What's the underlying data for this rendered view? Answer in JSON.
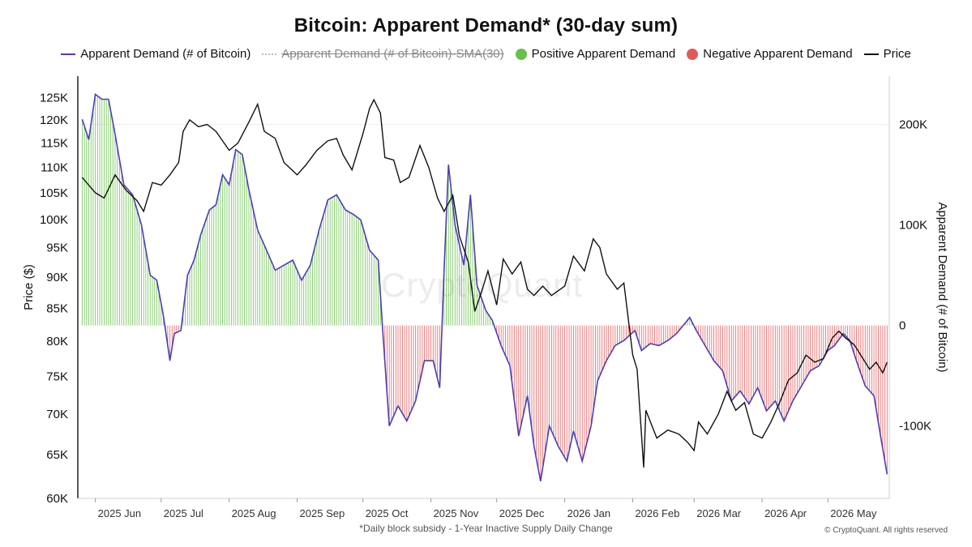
{
  "chart_data": {
    "type": "bar",
    "title": "Bitcoin: Apparent Demand* (30-day sum)",
    "footnote": "*Daily block subsidy - 1-Year Inactive Supply Daily Change",
    "copyright": "© CryptoQuant. All rights reserved",
    "watermark": "CryptoQuant",
    "legend": [
      {
        "name": "Apparent Demand (# of Bitcoin)",
        "swatch": "line",
        "color": "#4b3fb3",
        "hidden": false
      },
      {
        "name": "Apparent Demand (# of Bitcoin)-SMA(30)",
        "swatch": "dash",
        "color": "#bbbbbb",
        "hidden": true
      },
      {
        "name": "Positive Apparent Demand",
        "swatch": "dot",
        "color": "#6abf4b",
        "hidden": false
      },
      {
        "name": "Negative Apparent Demand",
        "swatch": "dot",
        "color": "#e05a5a",
        "hidden": false
      },
      {
        "name": "Price",
        "swatch": "line",
        "color": "#111111",
        "hidden": false
      }
    ],
    "left_axis": {
      "label": "Price ($)",
      "scale": "log",
      "range": [
        60000,
        130000
      ],
      "ticks": [
        60000,
        65000,
        70000,
        75000,
        80000,
        85000,
        90000,
        95000,
        100000,
        105000,
        110000,
        115000,
        120000,
        125000
      ],
      "tick_labels": [
        "60K",
        "65K",
        "70K",
        "75K",
        "80K",
        "85K",
        "90K",
        "95K",
        "100K",
        "105K",
        "110K",
        "115K",
        "120K",
        "125K"
      ]
    },
    "right_axis": {
      "label": "Apparent Demand (# of Bitcoin)",
      "scale": "linear",
      "range": [
        -172000,
        248000
      ],
      "ticks": [
        -100000,
        0,
        100000,
        200000
      ],
      "tick_labels": [
        "-100K",
        "0",
        "100K",
        "200K"
      ]
    },
    "x_axis": {
      "range": [
        "2025-05-24",
        "2026-05-29"
      ],
      "ticks": [
        "2025-06-01",
        "2025-07-01",
        "2025-08-01",
        "2025-09-01",
        "2025-10-01",
        "2025-11-01",
        "2025-12-01",
        "2026-01-01",
        "2026-02-01",
        "2026-03-01",
        "2026-04-01",
        "2026-05-01"
      ],
      "tick_labels": [
        "2025 Jun",
        "2025 Jul",
        "2025 Aug",
        "2025 Sep",
        "2025 Oct",
        "2025 Nov",
        "2025 Dec",
        "2026 Jan",
        "2026 Feb",
        "2026 Mar",
        "2026 Apr",
        "2026 May"
      ]
    },
    "series": [
      {
        "name": "Price",
        "axis": "left",
        "color": "#111111",
        "points": [
          [
            "2025-05-26",
            108000
          ],
          [
            "2025-06-01",
            105000
          ],
          [
            "2025-06-05",
            104000
          ],
          [
            "2025-06-10",
            108500
          ],
          [
            "2025-06-15",
            105500
          ],
          [
            "2025-06-20",
            103500
          ],
          [
            "2025-06-23",
            101500
          ],
          [
            "2025-06-27",
            107000
          ],
          [
            "2025-07-01",
            106500
          ],
          [
            "2025-07-05",
            108500
          ],
          [
            "2025-07-09",
            111000
          ],
          [
            "2025-07-11",
            117500
          ],
          [
            "2025-07-14",
            120000
          ],
          [
            "2025-07-18",
            118500
          ],
          [
            "2025-07-22",
            119000
          ],
          [
            "2025-07-26",
            117500
          ],
          [
            "2025-08-01",
            113500
          ],
          [
            "2025-08-05",
            115000
          ],
          [
            "2025-08-10",
            119500
          ],
          [
            "2025-08-14",
            123500
          ],
          [
            "2025-08-17",
            117500
          ],
          [
            "2025-08-22",
            116000
          ],
          [
            "2025-08-26",
            111000
          ],
          [
            "2025-09-01",
            108500
          ],
          [
            "2025-09-05",
            110500
          ],
          [
            "2025-09-10",
            113500
          ],
          [
            "2025-09-15",
            115500
          ],
          [
            "2025-09-19",
            116000
          ],
          [
            "2025-09-22",
            112500
          ],
          [
            "2025-09-26",
            109500
          ],
          [
            "2025-10-01",
            117000
          ],
          [
            "2025-10-04",
            122500
          ],
          [
            "2025-10-06",
            124500
          ],
          [
            "2025-10-09",
            121500
          ],
          [
            "2025-10-11",
            112000
          ],
          [
            "2025-10-15",
            111500
          ],
          [
            "2025-10-18",
            107000
          ],
          [
            "2025-10-22",
            108000
          ],
          [
            "2025-10-27",
            114500
          ],
          [
            "2025-10-31",
            110000
          ],
          [
            "2025-11-04",
            104000
          ],
          [
            "2025-11-07",
            101500
          ],
          [
            "2025-11-11",
            104500
          ],
          [
            "2025-11-14",
            97000
          ],
          [
            "2025-11-18",
            92500
          ],
          [
            "2025-11-21",
            84500
          ],
          [
            "2025-11-24",
            87500
          ],
          [
            "2025-11-27",
            91000
          ],
          [
            "2025-12-01",
            85500
          ],
          [
            "2025-12-04",
            93000
          ],
          [
            "2025-12-08",
            90500
          ],
          [
            "2025-12-12",
            92500
          ],
          [
            "2025-12-15",
            88000
          ],
          [
            "2025-12-18",
            87000
          ],
          [
            "2025-12-22",
            88500
          ],
          [
            "2025-12-26",
            87000
          ],
          [
            "2026-01-01",
            88500
          ],
          [
            "2026-01-05",
            93500
          ],
          [
            "2026-01-10",
            91000
          ],
          [
            "2026-01-14",
            96500
          ],
          [
            "2026-01-17",
            95000
          ],
          [
            "2026-01-20",
            90500
          ],
          [
            "2026-01-25",
            88000
          ],
          [
            "2026-01-28",
            89000
          ],
          [
            "2026-02-01",
            78000
          ],
          [
            "2026-02-03",
            76000
          ],
          [
            "2026-02-06",
            63500
          ],
          [
            "2026-02-07",
            70500
          ],
          [
            "2026-02-12",
            67000
          ],
          [
            "2026-02-17",
            68000
          ],
          [
            "2026-02-22",
            67500
          ],
          [
            "2026-02-26",
            66500
          ],
          [
            "2026-03-01",
            65500
          ],
          [
            "2026-03-03",
            69000
          ],
          [
            "2026-03-07",
            67500
          ],
          [
            "2026-03-12",
            70000
          ],
          [
            "2026-03-16",
            73000
          ],
          [
            "2026-03-20",
            70500
          ],
          [
            "2026-03-24",
            71500
          ],
          [
            "2026-03-28",
            67500
          ],
          [
            "2026-04-01",
            67000
          ],
          [
            "2026-04-05",
            69000
          ],
          [
            "2026-04-09",
            71500
          ],
          [
            "2026-04-13",
            74500
          ],
          [
            "2026-04-17",
            75500
          ],
          [
            "2026-04-21",
            78000
          ],
          [
            "2026-04-25",
            77000
          ],
          [
            "2026-04-29",
            77500
          ],
          [
            "2026-05-03",
            80500
          ],
          [
            "2026-05-06",
            81500
          ],
          [
            "2026-05-09",
            80500
          ],
          [
            "2026-05-13",
            79500
          ],
          [
            "2026-05-17",
            77500
          ],
          [
            "2026-05-20",
            76000
          ],
          [
            "2026-05-23",
            77000
          ],
          [
            "2026-05-26",
            75500
          ],
          [
            "2026-05-28",
            77000
          ]
        ]
      },
      {
        "name": "Apparent Demand (# of Bitcoin)",
        "axis": "right",
        "color": "#4b3fb3",
        "points": [
          [
            "2025-05-26",
            205000
          ],
          [
            "2025-05-29",
            185000
          ],
          [
            "2025-06-01",
            230000
          ],
          [
            "2025-06-04",
            225000
          ],
          [
            "2025-06-07",
            225000
          ],
          [
            "2025-06-10",
            190000
          ],
          [
            "2025-06-14",
            140000
          ],
          [
            "2025-06-18",
            130000
          ],
          [
            "2025-06-22",
            100000
          ],
          [
            "2025-06-26",
            50000
          ],
          [
            "2025-06-29",
            45000
          ],
          [
            "2025-07-02",
            10000
          ],
          [
            "2025-07-05",
            -35000
          ],
          [
            "2025-07-07",
            -8000
          ],
          [
            "2025-07-10",
            -5000
          ],
          [
            "2025-07-13",
            50000
          ],
          [
            "2025-07-16",
            65000
          ],
          [
            "2025-07-19",
            90000
          ],
          [
            "2025-07-23",
            115000
          ],
          [
            "2025-07-26",
            120000
          ],
          [
            "2025-07-29",
            150000
          ],
          [
            "2025-08-01",
            140000
          ],
          [
            "2025-08-04",
            175000
          ],
          [
            "2025-08-07",
            170000
          ],
          [
            "2025-08-10",
            135000
          ],
          [
            "2025-08-14",
            95000
          ],
          [
            "2025-08-18",
            75000
          ],
          [
            "2025-08-22",
            55000
          ],
          [
            "2025-08-26",
            60000
          ],
          [
            "2025-08-30",
            65000
          ],
          [
            "2025-09-03",
            45000
          ],
          [
            "2025-09-07",
            60000
          ],
          [
            "2025-09-11",
            95000
          ],
          [
            "2025-09-15",
            125000
          ],
          [
            "2025-09-19",
            130000
          ],
          [
            "2025-09-23",
            115000
          ],
          [
            "2025-09-27",
            110000
          ],
          [
            "2025-09-30",
            105000
          ],
          [
            "2025-10-04",
            75000
          ],
          [
            "2025-10-08",
            65000
          ],
          [
            "2025-10-10",
            -5000
          ],
          [
            "2025-10-13",
            -100000
          ],
          [
            "2025-10-17",
            -80000
          ],
          [
            "2025-10-21",
            -95000
          ],
          [
            "2025-10-25",
            -75000
          ],
          [
            "2025-10-29",
            -35000
          ],
          [
            "2025-11-02",
            -35000
          ],
          [
            "2025-11-05",
            -62000
          ],
          [
            "2025-11-07",
            55000
          ],
          [
            "2025-11-09",
            160000
          ],
          [
            "2025-11-12",
            100000
          ],
          [
            "2025-11-16",
            60000
          ],
          [
            "2025-11-19",
            130000
          ],
          [
            "2025-11-22",
            40000
          ],
          [
            "2025-11-26",
            15000
          ],
          [
            "2025-11-29",
            5000
          ],
          [
            "2025-12-03",
            -20000
          ],
          [
            "2025-12-07",
            -40000
          ],
          [
            "2025-12-11",
            -110000
          ],
          [
            "2025-12-15",
            -70000
          ],
          [
            "2025-12-18",
            -120000
          ],
          [
            "2025-12-21",
            -155000
          ],
          [
            "2025-12-25",
            -100000
          ],
          [
            "2025-12-29",
            -120000
          ],
          [
            "2026-01-02",
            -135000
          ],
          [
            "2026-01-05",
            -105000
          ],
          [
            "2026-01-09",
            -135000
          ],
          [
            "2026-01-13",
            -100000
          ],
          [
            "2026-01-16",
            -55000
          ],
          [
            "2026-01-20",
            -35000
          ],
          [
            "2026-01-24",
            -20000
          ],
          [
            "2026-01-28",
            -15000
          ],
          [
            "2026-02-02",
            -5000
          ],
          [
            "2026-02-05",
            -25000
          ],
          [
            "2026-02-09",
            -18000
          ],
          [
            "2026-02-13",
            -20000
          ],
          [
            "2026-02-17",
            -15000
          ],
          [
            "2026-02-21",
            -8000
          ],
          [
            "2026-02-24",
            0
          ],
          [
            "2026-02-27",
            8000
          ],
          [
            "2026-03-02",
            -5000
          ],
          [
            "2026-03-06",
            -20000
          ],
          [
            "2026-03-10",
            -35000
          ],
          [
            "2026-03-14",
            -45000
          ],
          [
            "2026-03-18",
            -75000
          ],
          [
            "2026-03-22",
            -65000
          ],
          [
            "2026-03-26",
            -78000
          ],
          [
            "2026-03-30",
            -62000
          ],
          [
            "2026-04-03",
            -85000
          ],
          [
            "2026-04-07",
            -75000
          ],
          [
            "2026-04-11",
            -95000
          ],
          [
            "2026-04-15",
            -75000
          ],
          [
            "2026-04-19",
            -60000
          ],
          [
            "2026-04-23",
            -45000
          ],
          [
            "2026-04-27",
            -40000
          ],
          [
            "2026-05-01",
            -25000
          ],
          [
            "2026-05-04",
            -20000
          ],
          [
            "2026-05-08",
            -8000
          ],
          [
            "2026-05-11",
            -15000
          ],
          [
            "2026-05-14",
            -35000
          ],
          [
            "2026-05-18",
            -60000
          ],
          [
            "2026-05-22",
            -70000
          ],
          [
            "2026-05-25",
            -110000
          ],
          [
            "2026-05-28",
            -148000
          ]
        ]
      }
    ]
  }
}
